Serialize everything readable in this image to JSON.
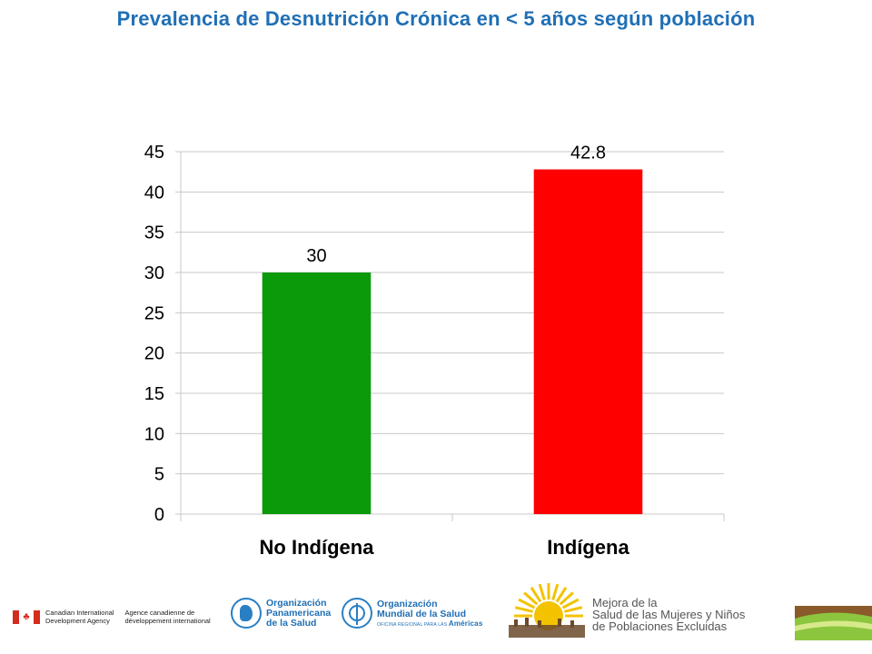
{
  "page": {
    "title": "Prevalencia de Desnutrición Crónica en < 5 años según población"
  },
  "chart_data": {
    "type": "bar",
    "categories": [
      "No Indígena",
      "Indígena"
    ],
    "values": [
      30,
      42.8
    ],
    "data_labels": [
      "30",
      "42.8"
    ],
    "colors": [
      "#0a9a0a",
      "#ff0000"
    ],
    "title": "",
    "xlabel": "",
    "ylabel": "",
    "ylim": [
      0,
      45
    ],
    "yticks": [
      0,
      5,
      10,
      15,
      20,
      25,
      30,
      35,
      40,
      45
    ],
    "grid": true,
    "legend": "none"
  },
  "footer": {
    "cida_en_line1": "Canadian International",
    "cida_en_line2": "Development Agency",
    "cida_fr_line1": "Agence canadienne de",
    "cida_fr_line2": "développement international",
    "ops_line1": "Organización",
    "ops_line2": "Panamericana",
    "ops_line3": "de la Salud",
    "oms_line1": "Organización",
    "oms_line2": "Mundial de la Salud",
    "oms_sub_small": "OFICINA REGIONAL PARA LAS",
    "oms_sub_bold": "Américas",
    "mejora_line1": "Mejora de la",
    "mejora_line2": "Salud de las Mujeres y Niños",
    "mejora_line3": "de Poblaciones Excluidas"
  },
  "colors": {
    "title": "#1f6fb5",
    "grid": "#c8c8c8",
    "axis_text": "#000000",
    "brand_blue": "#1f6fb5",
    "sun": "#f3c300",
    "leaf": "#8cc63f",
    "earth": "#8a5a2b"
  }
}
